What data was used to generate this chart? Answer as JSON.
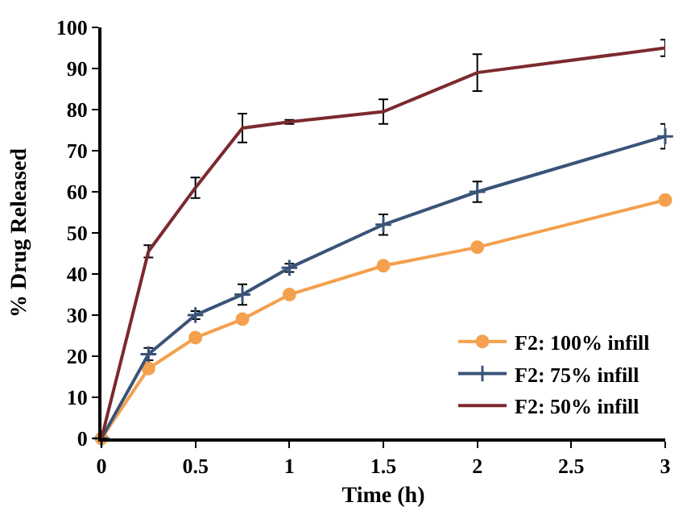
{
  "chart_data": {
    "type": "line",
    "xlabel": "Time (h)",
    "ylabel": "% Drug Released",
    "x": [
      0,
      0.25,
      0.5,
      0.75,
      1,
      1.5,
      2,
      3
    ],
    "series": [
      {
        "name": "F2: 100% infill",
        "color": "#f4a04e",
        "marker": "circle",
        "values": [
          0,
          17,
          24.5,
          29,
          35,
          42,
          46.5,
          58
        ]
      },
      {
        "name": "F2: 75% infill",
        "color": "#3a5478",
        "marker": "cross",
        "values": [
          0,
          20.5,
          30,
          35,
          41.5,
          52,
          60,
          73.5
        ],
        "errors": [
          null,
          1.5,
          1,
          2.5,
          1,
          2.5,
          2.5,
          3
        ]
      },
      {
        "name": "F2: 50% infill",
        "color": "#7b2a2e",
        "marker": "none",
        "values": [
          0,
          45.5,
          61,
          75.5,
          77,
          79.5,
          89,
          95
        ],
        "errors": [
          null,
          1.5,
          2.5,
          3.5,
          0.5,
          3,
          4.5,
          2
        ]
      }
    ],
    "xlim": [
      0,
      3
    ],
    "xticks": [
      0,
      0.5,
      1,
      1.5,
      2,
      2.5,
      3
    ],
    "ylim": [
      0,
      100
    ],
    "yticks": [
      0,
      10,
      20,
      30,
      40,
      50,
      60,
      70,
      80,
      90,
      100
    ],
    "legend": "bottom right",
    "line_style": "solid"
  }
}
